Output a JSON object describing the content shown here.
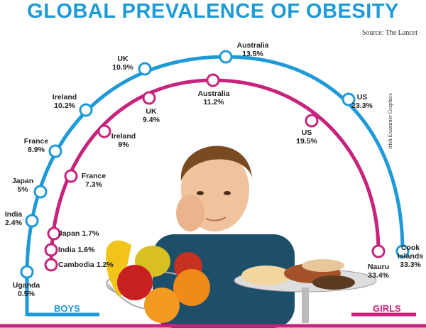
{
  "title": "GLOBAL PREVALENCE OF OBESITY",
  "source": "Source: The Lancet",
  "credit": "Irish Examiner Graphics",
  "boys": [
    {
      "country": "Uganda",
      "value": "0.5%"
    },
    {
      "country": "India",
      "value": "2.4%"
    },
    {
      "country": "Japan",
      "value": "5%"
    },
    {
      "country": "France",
      "value": "8.9%"
    },
    {
      "country": "Ireland",
      "value": "10.2%"
    },
    {
      "country": "UK",
      "value": "10.9%"
    },
    {
      "country": "Australia",
      "value": "13.5%"
    },
    {
      "country": "US",
      "value": "23.3%"
    },
    {
      "country": "Cook Islands",
      "value": "33.3%"
    }
  ],
  "girls": [
    {
      "country": "Cambodia",
      "value": "1.2%"
    },
    {
      "country": "India",
      "value": "1.6%"
    },
    {
      "country": "Japan",
      "value": "1.7%"
    },
    {
      "country": "France",
      "value": "7.3%"
    },
    {
      "country": "Ireland",
      "value": "9%"
    },
    {
      "country": "UK",
      "value": "9.4%"
    },
    {
      "country": "Australia",
      "value": "11.2%"
    },
    {
      "country": "US",
      "value": "19.5%"
    },
    {
      "country": "Nauru",
      "value": "33.4%"
    }
  ],
  "legend": {
    "boys": "BOYS",
    "girls": "GIRLS"
  }
}
